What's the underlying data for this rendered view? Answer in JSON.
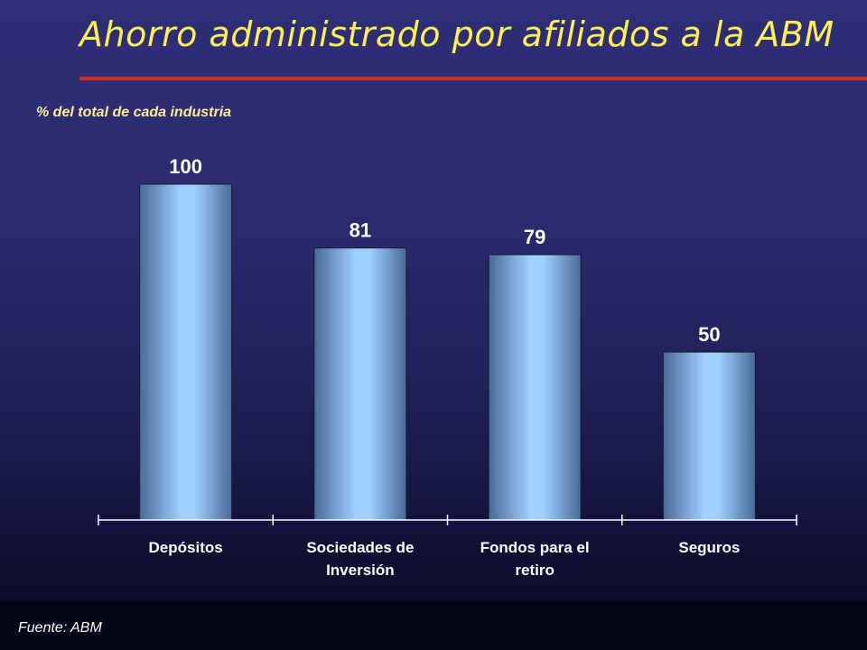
{
  "slide": {
    "title": "Ahorro administrado por afiliados a la ABM",
    "source": "Fuente: ABM"
  },
  "colors": {
    "title": "#ffee55",
    "rule": "#d8281a",
    "bar_light": "#9fd0ff",
    "bar_dark": "#4a6a98"
  },
  "chart_data": {
    "type": "bar",
    "title": "",
    "subtitle": "% del total de cada industria",
    "categories": [
      [
        "Depósitos"
      ],
      [
        "Sociedades de",
        "Inversión"
      ],
      [
        "Fondos para el",
        "retiro"
      ],
      [
        "Seguros"
      ]
    ],
    "values": [
      100,
      81,
      79,
      50
    ],
    "data_labels": [
      "100",
      "81",
      "79",
      "50"
    ],
    "ylim": [
      0,
      100
    ],
    "grid": false,
    "legend": "none"
  }
}
